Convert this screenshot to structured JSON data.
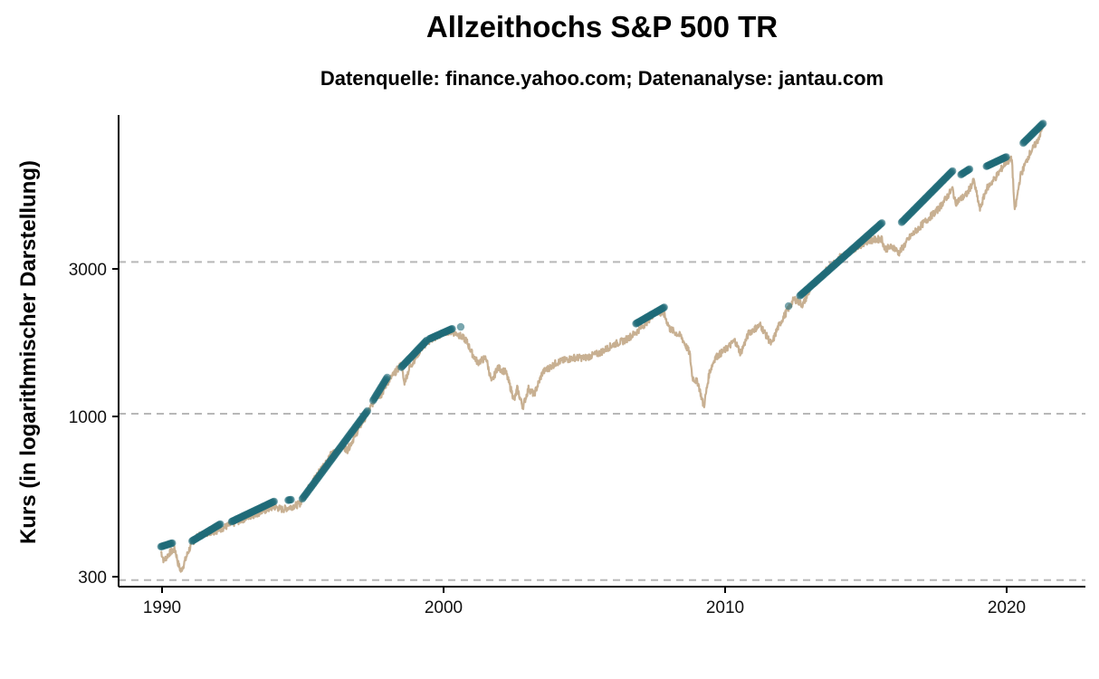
{
  "chart_data": {
    "type": "line",
    "title": "Allzeithochs S&P 500 TR",
    "subtitle": "Datenquelle: finance.yahoo.com; Datenanalyse: jantau.com",
    "xlabel": "",
    "ylabel": "Kurs (in logarithmischer Darstellung)",
    "x_ticks": [
      "1990",
      "2000",
      "2010",
      "2020"
    ],
    "y_ticks": [
      "300",
      "1000",
      "3000"
    ],
    "y_scale": "log",
    "xlim": [
      1988.5,
      2022.7
    ],
    "ylim": [
      286,
      8700
    ],
    "grid": "horizontal dashed at y ticks",
    "colors": {
      "price_line": "#c8b092",
      "all_time_high_points": "#1f6b78",
      "grid": "#b8b8b8"
    },
    "series": [
      {
        "kind": "line",
        "x": [
          1990.0,
          1990.1,
          1990.3,
          1990.5,
          1990.6,
          1990.7,
          1990.8,
          1990.9,
          1991.0,
          1991.2,
          1991.5,
          1992.0,
          1992.5,
          1993.0,
          1993.5,
          1994.0,
          1994.3,
          1994.6,
          1994.9,
          1995.2,
          1995.6,
          1996.0,
          1996.4,
          1996.6,
          1997.0,
          1997.3,
          1997.6,
          1997.8,
          1998.0,
          1998.5,
          1998.6,
          1998.8,
          1999.2,
          1999.5,
          1999.8,
          2000.0,
          2000.2,
          2000.5,
          2000.8,
          2001.0,
          2001.2,
          2001.5,
          2001.7,
          2001.9,
          2002.2,
          2002.5,
          2002.6,
          2002.8,
          2003.0,
          2003.2,
          2003.5,
          2004.0,
          2004.6,
          2005.0,
          2005.5,
          2006.0,
          2006.4,
          2006.8,
          2007.2,
          2007.5,
          2007.8,
          2008.0,
          2008.4,
          2008.7,
          2008.8,
          2009.0,
          2009.2,
          2009.4,
          2009.6,
          2010.0,
          2010.3,
          2010.5,
          2010.8,
          2011.2,
          2011.6,
          2011.8,
          2012.0,
          2012.4,
          2012.7,
          2013.0,
          2013.5,
          2014.0,
          2014.5,
          2015.0,
          2015.5,
          2015.6,
          2015.9,
          2016.1,
          2016.5,
          2017.0,
          2017.5,
          2018.0,
          2018.1,
          2018.5,
          2018.75,
          2018.97,
          2019.2,
          2019.5,
          2019.9,
          2020.1,
          2020.2,
          2020.4,
          2020.7,
          2021.0,
          2021.2
        ],
        "y": [
          370,
          345,
          365,
          375,
          340,
          320,
          335,
          355,
          375,
          405,
          420,
          430,
          450,
          470,
          490,
          510,
          500,
          510,
          520,
          580,
          660,
          740,
          790,
          770,
          900,
          1000,
          1130,
          1150,
          1250,
          1430,
          1250,
          1400,
          1600,
          1700,
          1750,
          1800,
          1820,
          1780,
          1700,
          1550,
          1450,
          1500,
          1250,
          1400,
          1350,
          1100,
          1200,
          1050,
          1200,
          1150,
          1350,
          1450,
          1500,
          1500,
          1550,
          1650,
          1700,
          1800,
          1950,
          2100,
          2050,
          1850,
          1750,
          1550,
          1300,
          1250,
          1050,
          1350,
          1500,
          1600,
          1700,
          1550,
          1800,
          1900,
          1650,
          1850,
          2000,
          2300,
          2200,
          2500,
          2800,
          3100,
          3300,
          3500,
          3550,
          3300,
          3350,
          3200,
          3600,
          4000,
          4400,
          5100,
          4600,
          4900,
          5400,
          4400,
          5100,
          5500,
          6200,
          6300,
          4300,
          5600,
          6500,
          7200,
          8000
        ]
      },
      {
        "kind": "points",
        "segments": [
          {
            "x": [
              1990.0,
              1990.4
            ],
            "y": [
              382,
              392
            ]
          },
          {
            "x": [
              1991.1,
              1992.1
            ],
            "y": [
              398,
              450
            ]
          },
          {
            "x": [
              1992.5,
              1994.0
            ],
            "y": [
              458,
              530
            ]
          },
          {
            "x": [
              1994.5,
              1994.6
            ],
            "y": [
              535,
              537
            ]
          },
          {
            "x": [
              1995.0,
              1997.3
            ],
            "y": [
              540,
              1020
            ]
          },
          {
            "x": [
              1997.5,
              1998.0
            ],
            "y": [
              1100,
              1300
            ]
          },
          {
            "x": [
              1998.5,
              1999.4
            ],
            "y": [
              1400,
              1700
            ]
          },
          {
            "x": [
              1999.5,
              2000.3
            ],
            "y": [
              1720,
              1850
            ]
          },
          {
            "x": [
              2000.6,
              2000.6
            ],
            "y": [
              1875,
              1875
            ]
          },
          {
            "x": [
              2006.8,
              2007.8
            ],
            "y": [
              1920,
              2160
            ]
          },
          {
            "x": [
              2012.2,
              2012.2
            ],
            "y": [
              2180,
              2180
            ]
          },
          {
            "x": [
              2012.6,
              2015.5
            ],
            "y": [
              2350,
              3980
            ]
          },
          {
            "x": [
              2016.2,
              2018.0
            ],
            "y": [
              4000,
              5800
            ]
          },
          {
            "x": [
              2018.3,
              2018.6
            ],
            "y": [
              5650,
              5880
            ]
          },
          {
            "x": [
              2019.2,
              2019.9
            ],
            "y": [
              6000,
              6420
            ]
          },
          {
            "x": [
              2020.5,
              2021.2
            ],
            "y": [
              7100,
              8180
            ]
          }
        ]
      }
    ]
  }
}
